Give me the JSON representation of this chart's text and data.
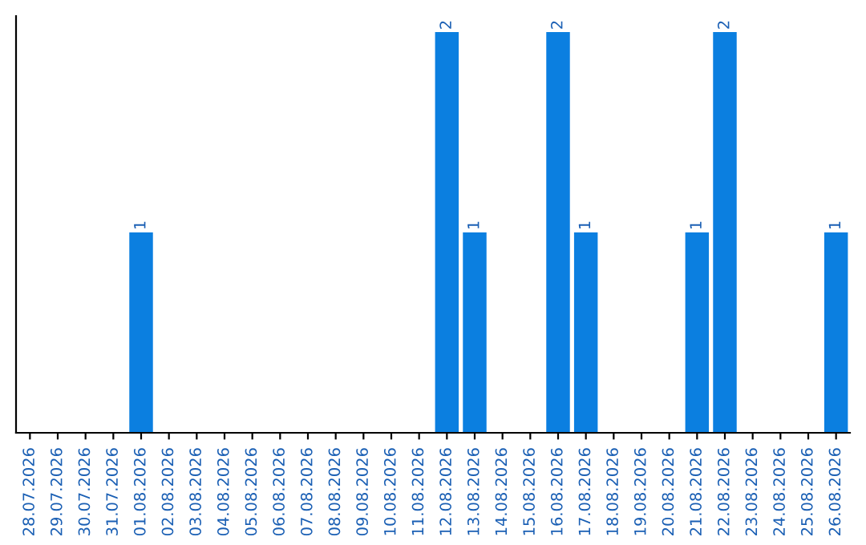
{
  "chart_data": {
    "type": "bar",
    "categories": [
      "28.07.2026",
      "29.07.2026",
      "30.07.2026",
      "31.07.2026",
      "01.08.2026",
      "02.08.2026",
      "03.08.2026",
      "04.08.2026",
      "05.08.2026",
      "06.08.2026",
      "07.08.2026",
      "08.08.2026",
      "09.08.2026",
      "10.08.2026",
      "11.08.2026",
      "12.08.2026",
      "13.08.2026",
      "14.08.2026",
      "15.08.2026",
      "16.08.2026",
      "17.08.2026",
      "18.08.2026",
      "19.08.2026",
      "20.08.2026",
      "21.08.2026",
      "22.08.2026",
      "23.08.2026",
      "24.08.2026",
      "25.08.2026",
      "26.08.2026"
    ],
    "values": [
      0,
      0,
      0,
      0,
      1,
      0,
      0,
      0,
      0,
      0,
      0,
      0,
      0,
      0,
      0,
      2,
      1,
      0,
      0,
      2,
      1,
      0,
      0,
      0,
      1,
      2,
      0,
      0,
      0,
      1
    ],
    "value_labels": [
      null,
      null,
      null,
      null,
      "1",
      null,
      null,
      null,
      null,
      null,
      null,
      null,
      null,
      null,
      null,
      "2",
      "1",
      null,
      null,
      "2",
      "1",
      null,
      null,
      null,
      "1",
      "2",
      null,
      null,
      null,
      "1"
    ],
    "color": "#0b7fe0",
    "tick_labels": "x",
    "grid": false,
    "legend": false
  }
}
